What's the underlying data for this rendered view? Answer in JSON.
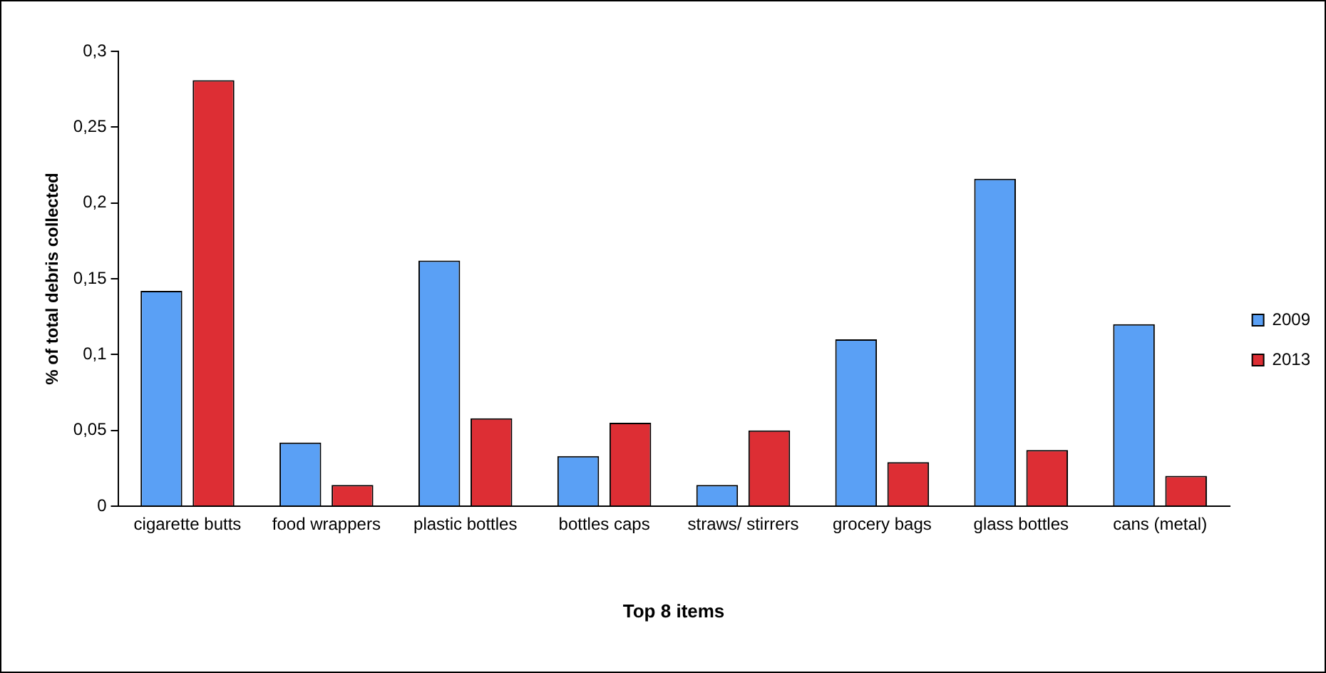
{
  "chart_data": {
    "type": "bar",
    "xlabel": "Top 8 items",
    "ylabel": "% of total debris collected",
    "categories": [
      "cigarette butts",
      "food wrappers",
      "plastic bottles",
      "bottles caps",
      "straws/ stirrers",
      "grocery bags",
      "glass bottles",
      "cans (metal)"
    ],
    "series": [
      {
        "name": "2009",
        "color": "#5aa0f5",
        "values": [
          0.142,
          0.042,
          0.162,
          0.033,
          0.014,
          0.11,
          0.216,
          0.12
        ]
      },
      {
        "name": "2013",
        "color": "#dd2e34",
        "values": [
          0.281,
          0.014,
          0.058,
          0.055,
          0.05,
          0.029,
          0.037,
          0.02
        ]
      }
    ],
    "ylim": [
      0,
      0.3
    ],
    "yticks": [
      0,
      {
        "value": 0.05,
        "label": "0,05"
      },
      {
        "value": 0.1,
        "label": "0,1"
      },
      {
        "value": 0.15,
        "label": "0,15"
      },
      {
        "value": 0.2,
        "label": "0,2"
      },
      {
        "value": 0.25,
        "label": "0,25"
      },
      {
        "value": 0.3,
        "label": "0,3"
      }
    ],
    "grid": false,
    "legend": "right"
  }
}
